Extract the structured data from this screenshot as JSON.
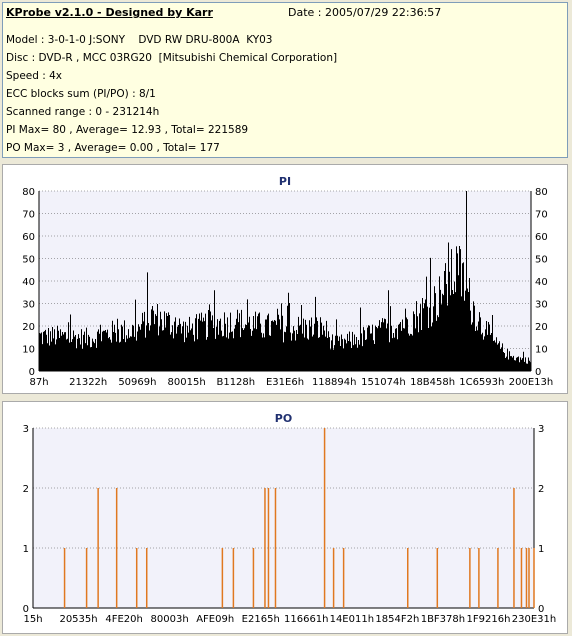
{
  "header": {
    "title": "KProbe v2.1.0 - Designed by Karr",
    "date": "Date : 2005/07/29 22:36:57",
    "lines": [
      "Model : 3-0-1-0 J:SONY    DVD RW DRU-800A  KY03",
      "Disc : DVD-R , MCC 03RG20  [Mitsubishi Chemical Corporation]",
      "Speed : 4x",
      "ECC blocks sum (PI/PO) : 8/1",
      "Scanned range : 0 - 231214h",
      "PI Max= 80 , Average= 12.93 , Total= 221589",
      "PO Max= 3 , Average= 0.00 , Total= 177"
    ]
  },
  "chart_data": [
    {
      "type": "bar",
      "title": "PI",
      "ylim": [
        0,
        80
      ],
      "yticks": [
        0,
        10,
        20,
        30,
        40,
        50,
        60,
        70,
        80
      ],
      "xtick_labels": [
        "87h",
        "21322h",
        "50969h",
        "80015h",
        "B1128h",
        "E31E6h",
        "118894h",
        "151074h",
        "18B458h",
        "1C6593h",
        "200E13h"
      ],
      "color": "#000000",
      "profile": {
        "x_fraction": [
          0,
          0.05,
          0.1,
          0.15,
          0.2,
          0.23,
          0.26,
          0.3,
          0.35,
          0.4,
          0.45,
          0.5,
          0.55,
          0.58,
          0.6,
          0.62,
          0.65,
          0.7,
          0.73,
          0.76,
          0.79,
          0.81,
          0.83,
          0.85,
          0.86,
          0.88,
          0.9,
          0.93,
          0.96,
          1
        ],
        "typical_value": [
          17,
          17,
          16,
          19,
          20,
          27,
          24,
          20,
          23,
          24,
          22,
          21,
          21,
          21,
          13,
          14,
          16,
          20,
          23,
          26,
          31,
          35,
          42,
          50,
          46,
          33,
          23,
          13,
          7,
          5
        ]
      },
      "peak": {
        "x_fraction": 0.87,
        "value": 80
      },
      "grid": true
    },
    {
      "type": "bar",
      "title": "PO",
      "ylim": [
        0,
        3
      ],
      "yticks": [
        0,
        1,
        2,
        3
      ],
      "xtick_labels": [
        "15h",
        "20535h",
        "4FE20h",
        "80003h",
        "AFE09h",
        "E2165h",
        "116661h",
        "14E011h",
        "1854F2h",
        "1BF378h",
        "1F9216h",
        "230E31h"
      ],
      "color": "#e07820",
      "bars": [
        {
          "x": 0.063,
          "value": 1
        },
        {
          "x": 0.107,
          "value": 1
        },
        {
          "x": 0.13,
          "value": 2
        },
        {
          "x": 0.167,
          "value": 2
        },
        {
          "x": 0.207,
          "value": 1
        },
        {
          "x": 0.227,
          "value": 1
        },
        {
          "x": 0.378,
          "value": 1
        },
        {
          "x": 0.4,
          "value": 1
        },
        {
          "x": 0.44,
          "value": 1
        },
        {
          "x": 0.463,
          "value": 2
        },
        {
          "x": 0.47,
          "value": 2
        },
        {
          "x": 0.484,
          "value": 2
        },
        {
          "x": 0.582,
          "value": 3
        },
        {
          "x": 0.6,
          "value": 1
        },
        {
          "x": 0.62,
          "value": 1
        },
        {
          "x": 0.748,
          "value": 1
        },
        {
          "x": 0.807,
          "value": 1
        },
        {
          "x": 0.872,
          "value": 1
        },
        {
          "x": 0.89,
          "value": 1
        },
        {
          "x": 0.928,
          "value": 1
        },
        {
          "x": 0.96,
          "value": 2
        },
        {
          "x": 0.975,
          "value": 1
        },
        {
          "x": 0.985,
          "value": 1
        },
        {
          "x": 0.99,
          "value": 1
        },
        {
          "x": 1.0,
          "value": 1
        }
      ],
      "grid": true
    }
  ]
}
